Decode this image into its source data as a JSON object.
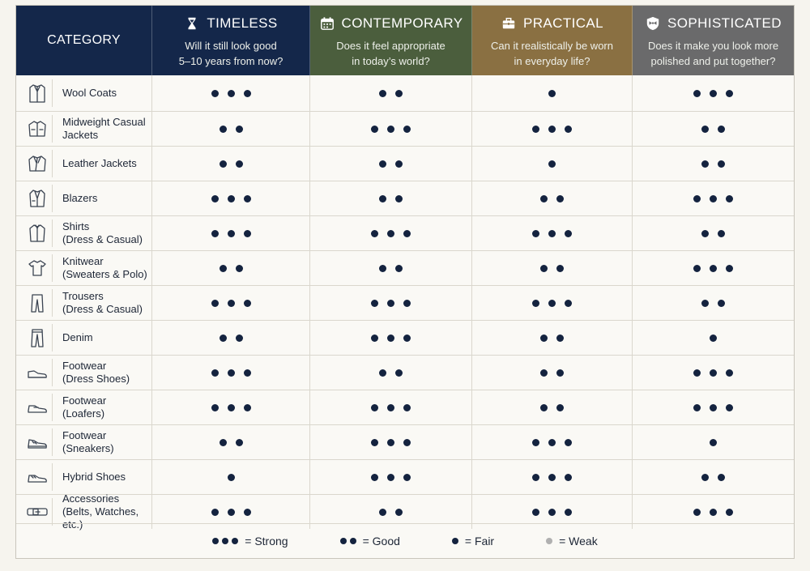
{
  "header": {
    "category_label": "CATEGORY",
    "columns": [
      {
        "key": "timeless",
        "title": "TIMELESS",
        "icon": "hourglass-icon",
        "subtitle": "Will it still look good\n5–10 years from now?",
        "color": "#14274a"
      },
      {
        "key": "contemporary",
        "title": "CONTEMPORARY",
        "icon": "calendar-icon",
        "subtitle": "Does it feel appropriate\nin today’s world?",
        "color": "#4b5e3d"
      },
      {
        "key": "practical",
        "title": "PRACTICAL",
        "icon": "briefcase-icon",
        "subtitle": "Can it realistically be worn\nin everyday life?",
        "color": "#8a7042"
      },
      {
        "key": "sophisticated",
        "title": "SOPHISTICATED",
        "icon": "bowtie-shield-icon",
        "subtitle": "Does it make you look more\npolished and put together?",
        "color": "#6a6a6b"
      }
    ]
  },
  "rows": [
    {
      "label": "Wool Coats",
      "icon": "coat-icon",
      "scores": [
        3,
        2,
        1,
        3
      ]
    },
    {
      "label": "Midweight Casual\nJackets",
      "icon": "jacket-icon",
      "scores": [
        2,
        3,
        3,
        2
      ]
    },
    {
      "label": "Leather Jackets",
      "icon": "leather-jacket-icon",
      "scores": [
        2,
        2,
        1,
        2
      ]
    },
    {
      "label": "Blazers",
      "icon": "blazer-icon",
      "scores": [
        3,
        2,
        2,
        3
      ]
    },
    {
      "label": "Shirts\n(Dress & Casual)",
      "icon": "shirt-icon",
      "scores": [
        3,
        3,
        3,
        2
      ]
    },
    {
      "label": "Knitwear\n(Sweaters & Polo)",
      "icon": "tshirt-icon",
      "scores": [
        2,
        2,
        2,
        3
      ]
    },
    {
      "label": "Trousers\n(Dress & Casual)",
      "icon": "trousers-icon",
      "scores": [
        3,
        3,
        3,
        2
      ]
    },
    {
      "label": "Denim",
      "icon": "jeans-icon",
      "scores": [
        2,
        3,
        2,
        1
      ]
    },
    {
      "label": "Footwear\n(Dress Shoes)",
      "icon": "dress-shoe-icon",
      "scores": [
        3,
        2,
        2,
        3
      ]
    },
    {
      "label": "Footwear\n(Loafers)",
      "icon": "loafer-icon",
      "scores": [
        3,
        3,
        2,
        3
      ]
    },
    {
      "label": "Footwear\n(Sneakers)",
      "icon": "sneaker-icon",
      "scores": [
        2,
        3,
        3,
        1
      ]
    },
    {
      "label": "Hybrid Shoes",
      "icon": "hybrid-shoe-icon",
      "scores": [
        1,
        3,
        3,
        2
      ]
    },
    {
      "label": "Accessories\n(Belts, Watches, etc.)",
      "icon": "belt-icon",
      "scores": [
        3,
        2,
        3,
        3
      ]
    }
  ],
  "legend": [
    {
      "dots": 3,
      "text": "= Strong"
    },
    {
      "dots": 2,
      "text": "= Good"
    },
    {
      "dots": 1,
      "text": "= Fair"
    },
    {
      "dots": 1,
      "weak": true,
      "text": "= Weak"
    }
  ],
  "colors": {
    "dot": "#14233f",
    "weak_dot": "#b0b0b0"
  }
}
